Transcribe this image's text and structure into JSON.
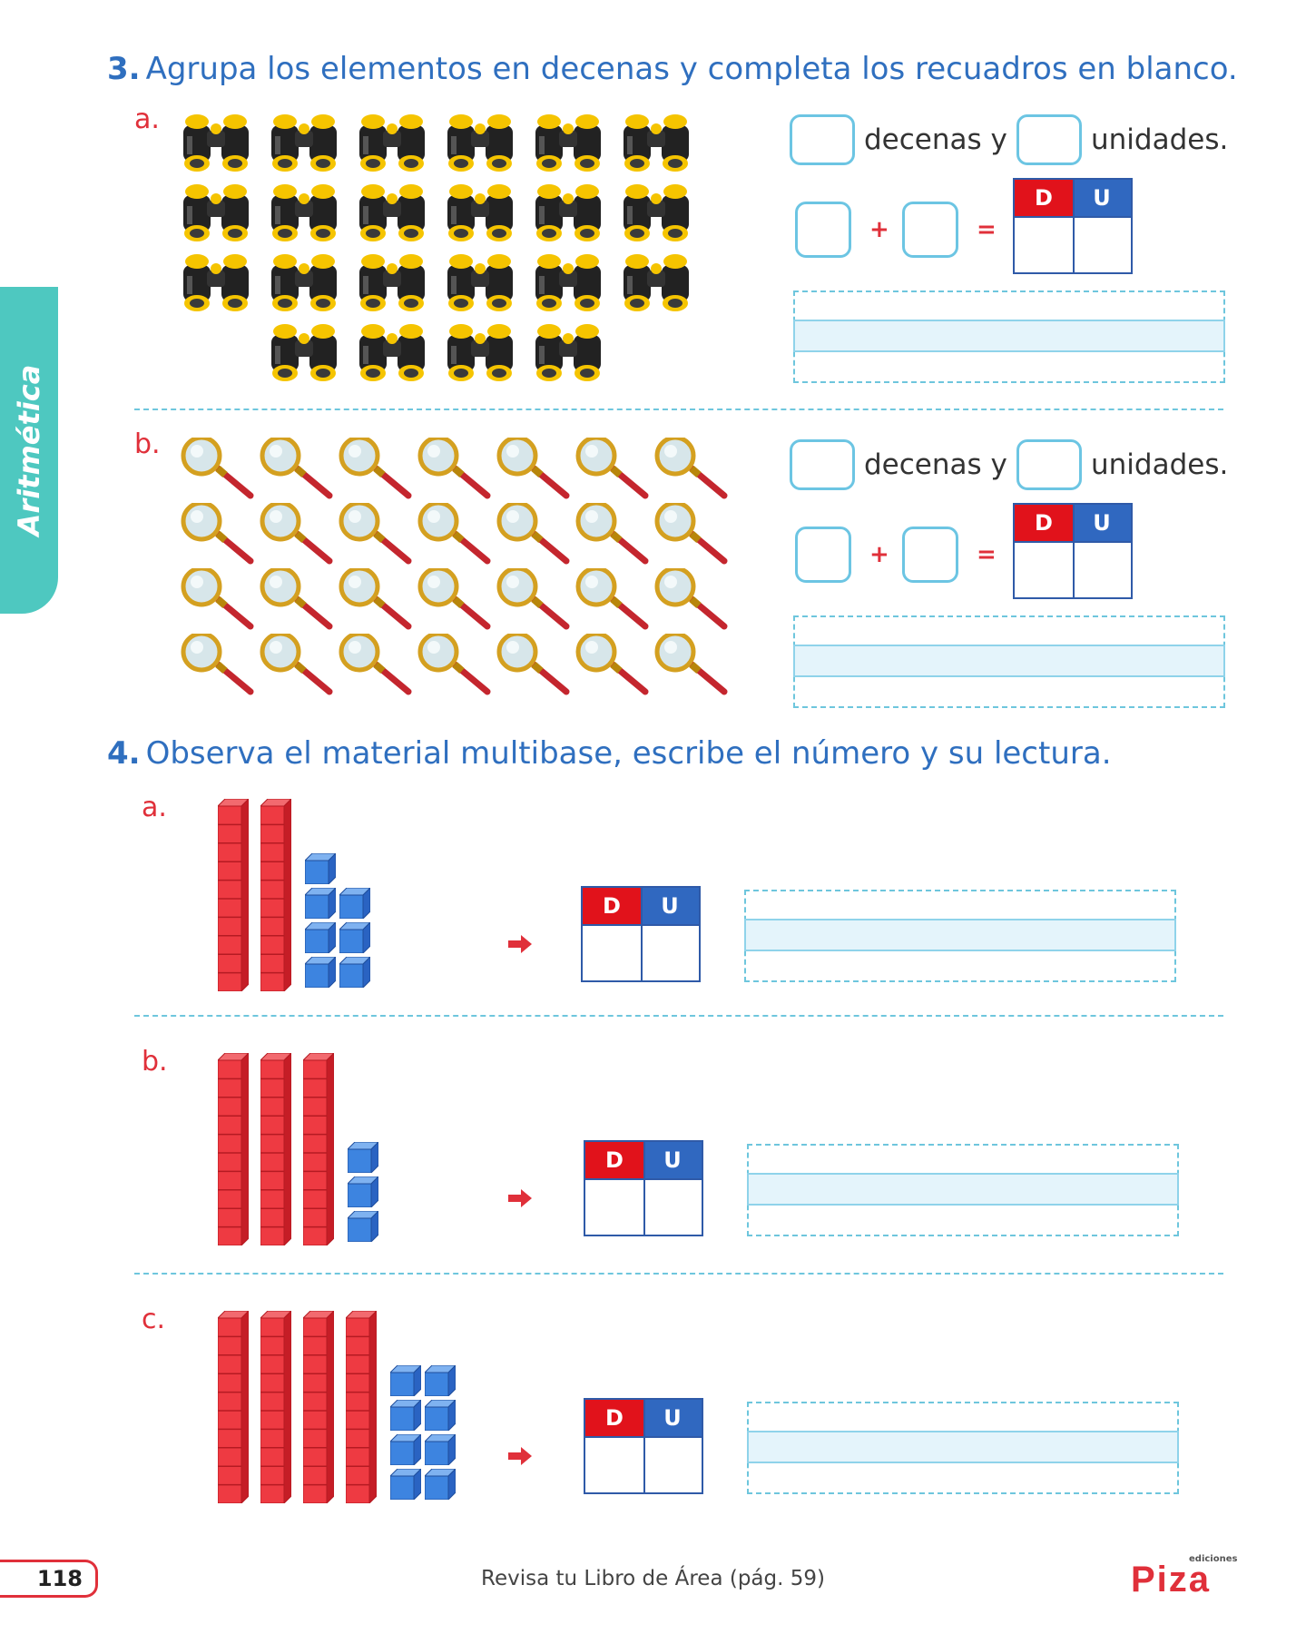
{
  "side_tab": "Aritmética",
  "exercise3": {
    "number": "3.",
    "title": "Agrupa los elementos en decenas y completa los recuadros en blanco.",
    "parts": [
      {
        "letter": "a.",
        "item_icon": "binoculars-icon",
        "count": 22
      },
      {
        "letter": "b.",
        "item_icon": "magnifying-glass-icon",
        "count": 28
      }
    ],
    "decenas_y": "decenas y",
    "unidades": "unidades.",
    "plus": "+",
    "equals": "=",
    "du_d": "D",
    "du_u": "U"
  },
  "exercise4": {
    "number": "4.",
    "title": "Observa el material multibase, escribe el número y su lectura.",
    "parts": [
      {
        "letter": "a.",
        "tens": 2,
        "units": 7
      },
      {
        "letter": "b.",
        "tens": 3,
        "units": 3
      },
      {
        "letter": "c.",
        "tens": 4,
        "units": 8
      }
    ],
    "du_d": "D",
    "du_u": "U"
  },
  "footer": {
    "page_number": "118",
    "reference": "Revisa tu Libro de Área (pág. 59)",
    "logo_small": "ediciones",
    "logo_name": "Piza"
  },
  "colors": {
    "accent_blue": "#2f6fbf",
    "accent_red": "#e0303a",
    "tab_teal": "#4ec8c0",
    "box_cyan": "#6cc5e3"
  }
}
